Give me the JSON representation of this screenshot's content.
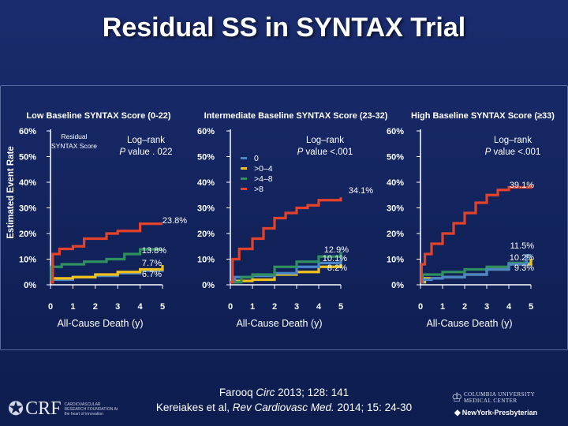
{
  "slide_title": "Residual SS in SYNTAX Trial",
  "y_axis_title": "Estimated Event Rate",
  "references": {
    "line1": "Farooq Circ 2013; 128: 141",
    "line2": "Kereiakes et al, Rev Cardiovasc Med. 2014; 15: 24-30"
  },
  "logos": {
    "crf_name": "CRF",
    "crf_subtitle": "CARDIOVASCULAR RESEARCH FOUNDATION At the heart of innovation",
    "cu_line1": "COLUMBIA UNIVERSITY",
    "cu_line2": "MEDICAL CENTER",
    "nyp": "NewYork-Presbyterian"
  },
  "legend": {
    "title": "Residual SYNTAX Score",
    "entries": [
      "0",
      ">0–4",
      ">4–8",
      ">8"
    ]
  },
  "colors": {
    "0": "#4a86c7",
    ">0–4": "#f2c21b",
    ">4–8": "#2f8f5e",
    ">8": "#e3432a"
  },
  "chart_data": [
    {
      "type": "line",
      "title": "Low Baseline SYNTAX Score (0-22)",
      "xlabel": "All-Cause Death (y)",
      "xlim": [
        0,
        5
      ],
      "ylim": [
        0,
        60
      ],
      "x_ticks": [
        "0",
        "1",
        "2",
        "3",
        "4",
        "5"
      ],
      "y_ticks": [
        "0%",
        "10%",
        "20%",
        "30%",
        "40%",
        "50%",
        "60%"
      ],
      "annotation": "Log–rank P value . 022",
      "end_labels": [
        "23.8%",
        "13.8%",
        "7.7%",
        "6.7%"
      ],
      "series": [
        {
          "name": ">8",
          "values": [
            [
              0,
              1
            ],
            [
              0.1,
              12
            ],
            [
              0.4,
              14
            ],
            [
              1,
              15
            ],
            [
              1.5,
              18
            ],
            [
              2.5,
              20
            ],
            [
              3,
              21
            ],
            [
              4,
              23.8
            ],
            [
              5,
              23.8
            ]
          ]
        },
        {
          "name": ">4–8",
          "values": [
            [
              0,
              1
            ],
            [
              0.05,
              7
            ],
            [
              0.5,
              8
            ],
            [
              1.5,
              9
            ],
            [
              2.5,
              10
            ],
            [
              3.3,
              12
            ],
            [
              4,
              13.8
            ],
            [
              5,
              13.8
            ]
          ]
        },
        {
          "name": ">0–4",
          "values": [
            [
              0,
              1
            ],
            [
              0.1,
              2.5
            ],
            [
              1,
              3
            ],
            [
              2,
              4
            ],
            [
              3,
              5
            ],
            [
              4,
              6
            ],
            [
              5,
              7.7
            ]
          ]
        },
        {
          "name": "0",
          "values": [
            [
              0,
              1
            ],
            [
              0.1,
              2
            ],
            [
              1,
              3
            ],
            [
              2,
              3.5
            ],
            [
              3,
              4.5
            ],
            [
              4,
              5.5
            ],
            [
              5,
              6.7
            ]
          ]
        }
      ]
    },
    {
      "type": "line",
      "title": "Intermediate Baseline SYNTAX Score (23-32)",
      "xlabel": "All-Cause Death (y)",
      "xlim": [
        0,
        5
      ],
      "ylim": [
        0,
        60
      ],
      "x_ticks": [
        "0",
        "1",
        "2",
        "3",
        "4",
        "5"
      ],
      "y_ticks": [
        "0%",
        "10%",
        "20%",
        "30%",
        "40%",
        "50%",
        "60%"
      ],
      "annotation": "Log–rank P value <.001",
      "end_labels": [
        "34.1%",
        "12.9%",
        "10.1%",
        "8.2%"
      ],
      "series": [
        {
          "name": ">8",
          "values": [
            [
              0,
              1
            ],
            [
              0.1,
              10
            ],
            [
              0.4,
              14
            ],
            [
              1,
              18
            ],
            [
              1.5,
              22
            ],
            [
              2,
              26
            ],
            [
              2.5,
              28
            ],
            [
              3,
              30
            ],
            [
              3.5,
              31
            ],
            [
              4,
              33
            ],
            [
              5,
              34.1
            ]
          ]
        },
        {
          "name": ">4–8",
          "values": [
            [
              0,
              1
            ],
            [
              0.5,
              3
            ],
            [
              1,
              4
            ],
            [
              2,
              7
            ],
            [
              3,
              9
            ],
            [
              4,
              11
            ],
            [
              5,
              12.9
            ]
          ]
        },
        {
          "name": "0",
          "values": [
            [
              0,
              1
            ],
            [
              0.2,
              3
            ],
            [
              1,
              3.5
            ],
            [
              2,
              4.5
            ],
            [
              3,
              7
            ],
            [
              4,
              8.5
            ],
            [
              5,
              10.1
            ]
          ]
        },
        {
          "name": ">0–4",
          "values": [
            [
              0,
              1
            ],
            [
              0.3,
              1.5
            ],
            [
              1,
              2
            ],
            [
              2,
              4
            ],
            [
              3,
              5
            ],
            [
              4,
              7
            ],
            [
              5,
              8.2
            ]
          ]
        }
      ]
    },
    {
      "type": "line",
      "title": "High Baseline SYNTAX Score (≥33)",
      "xlabel": "All-Cause Death (y)",
      "xlim": [
        0,
        5
      ],
      "ylim": [
        0,
        60
      ],
      "x_ticks": [
        "0",
        "1",
        "2",
        "3",
        "4",
        "5"
      ],
      "y_ticks": [
        "0%",
        "10%",
        "20%",
        "30%",
        "40%",
        "50%",
        "60%"
      ],
      "annotation": "Log–rank P value <.001",
      "end_labels": [
        "39.1%",
        "11.5%",
        "10.2%",
        "9.3%"
      ],
      "series": [
        {
          "name": ">8",
          "values": [
            [
              0,
              1
            ],
            [
              0.05,
              8
            ],
            [
              0.2,
              12
            ],
            [
              0.5,
              16
            ],
            [
              1,
              20
            ],
            [
              1.5,
              24
            ],
            [
              2,
              28
            ],
            [
              2.5,
              32
            ],
            [
              3,
              35
            ],
            [
              3.5,
              37
            ],
            [
              4,
              38
            ],
            [
              5,
              39.1
            ]
          ]
        },
        {
          "name": "0",
          "values": [
            [
              0,
              1
            ],
            [
              0.1,
              2
            ],
            [
              0.5,
              2.5
            ],
            [
              1,
              3
            ],
            [
              2,
              4
            ],
            [
              3,
              6
            ],
            [
              4,
              8
            ],
            [
              4.8,
              9
            ],
            [
              4.8,
              11.5
            ],
            [
              5,
              11.5
            ]
          ]
        },
        {
          "name": ">0–4",
          "values": [
            [
              0,
              1
            ],
            [
              0.2,
              2.5
            ],
            [
              1,
              3
            ],
            [
              2,
              4
            ],
            [
              3,
              6
            ],
            [
              4,
              8
            ],
            [
              5,
              10.2
            ]
          ]
        },
        {
          "name": ">4–8",
          "values": [
            [
              0,
              1
            ],
            [
              0.1,
              4
            ],
            [
              1,
              5
            ],
            [
              2,
              6
            ],
            [
              3,
              7
            ],
            [
              4,
              8.5
            ],
            [
              5,
              9.3
            ]
          ]
        }
      ]
    }
  ]
}
